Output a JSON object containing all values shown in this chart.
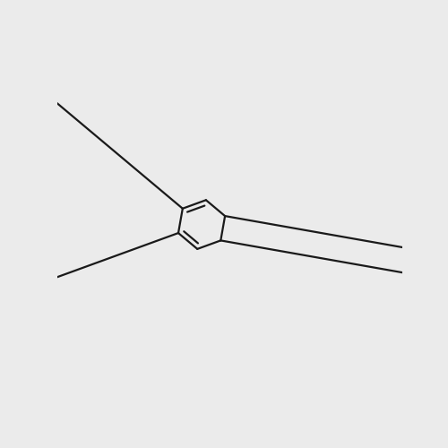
{
  "background_color": "#ebebeb",
  "bond_color": "#1a1a1a",
  "bond_width": 1.6,
  "atom_F_color": "#cc1fcc",
  "atom_Br_color": "#d47010",
  "atom_N_color": "#2222dd",
  "atom_H_color": "#558888",
  "atom_O_color": "#dd1111",
  "scale": 0.072,
  "ox": 0.455,
  "oy": 0.505
}
